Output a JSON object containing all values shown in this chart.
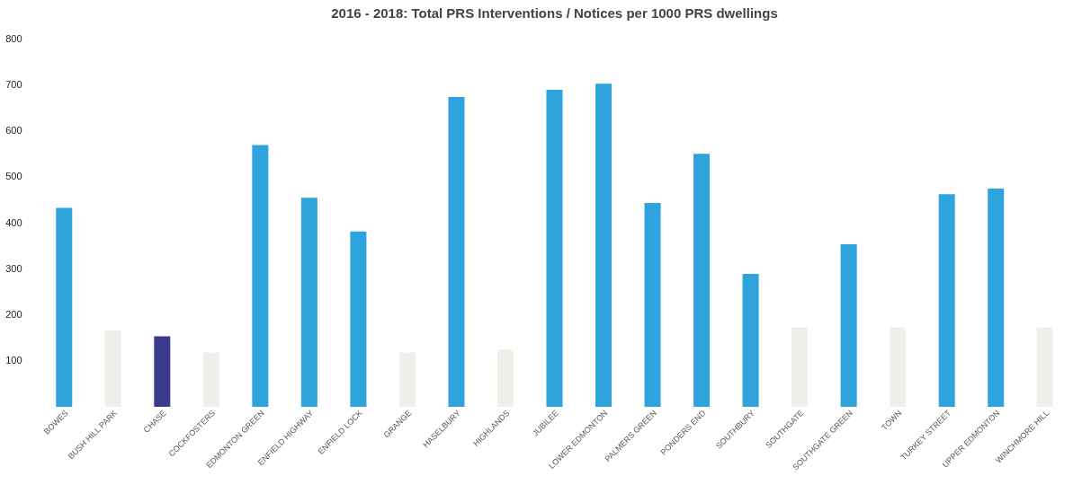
{
  "chart_data": {
    "type": "bar",
    "title": "2016 - 2018: Total PRS Interventions / Notices per 1000 PRS dwellings",
    "categories": [
      "BOWES",
      "BUSH HILL PARK",
      "CHASE",
      "COCKFOSTERS",
      "EDMONTON GREEN",
      "ENFIELD HIGHWAY",
      "ENFIELD LOCK",
      "GRANGE",
      "HASELBURY",
      "HIGHLANDS",
      "JUBILEE",
      "LOWER EDMONTON",
      "PALMERS GREEN",
      "PONDERS END",
      "SOUTHBURY",
      "SOUTHGATE",
      "SOUTHGATE GREEN",
      "TOWN",
      "TURKEY STREET",
      "UPPER EDMONTON",
      "WINCHMORE HILL"
    ],
    "values": [
      432,
      166,
      153,
      118,
      569,
      454,
      381,
      118,
      673,
      125,
      689,
      702,
      443,
      550,
      289,
      172,
      353,
      172,
      462,
      474,
      172
    ],
    "colors": [
      "#2ea3dc",
      "#f0f0ea",
      "#3a3a8a",
      "#f0f0ea",
      "#2ea3dc",
      "#2ea3dc",
      "#2ea3dc",
      "#f0f0ea",
      "#2ea3dc",
      "#f0f0ea",
      "#2ea3dc",
      "#2ea3dc",
      "#2ea3dc",
      "#2ea3dc",
      "#2ea3dc",
      "#f0f0ea",
      "#2ea3dc",
      "#f0f0ea",
      "#2ea3dc",
      "#2ea3dc",
      "#f0f0ea"
    ],
    "ylim": [
      0,
      800
    ],
    "yticks": [
      100,
      200,
      300,
      400,
      500,
      600,
      700,
      800
    ],
    "grid": false
  }
}
